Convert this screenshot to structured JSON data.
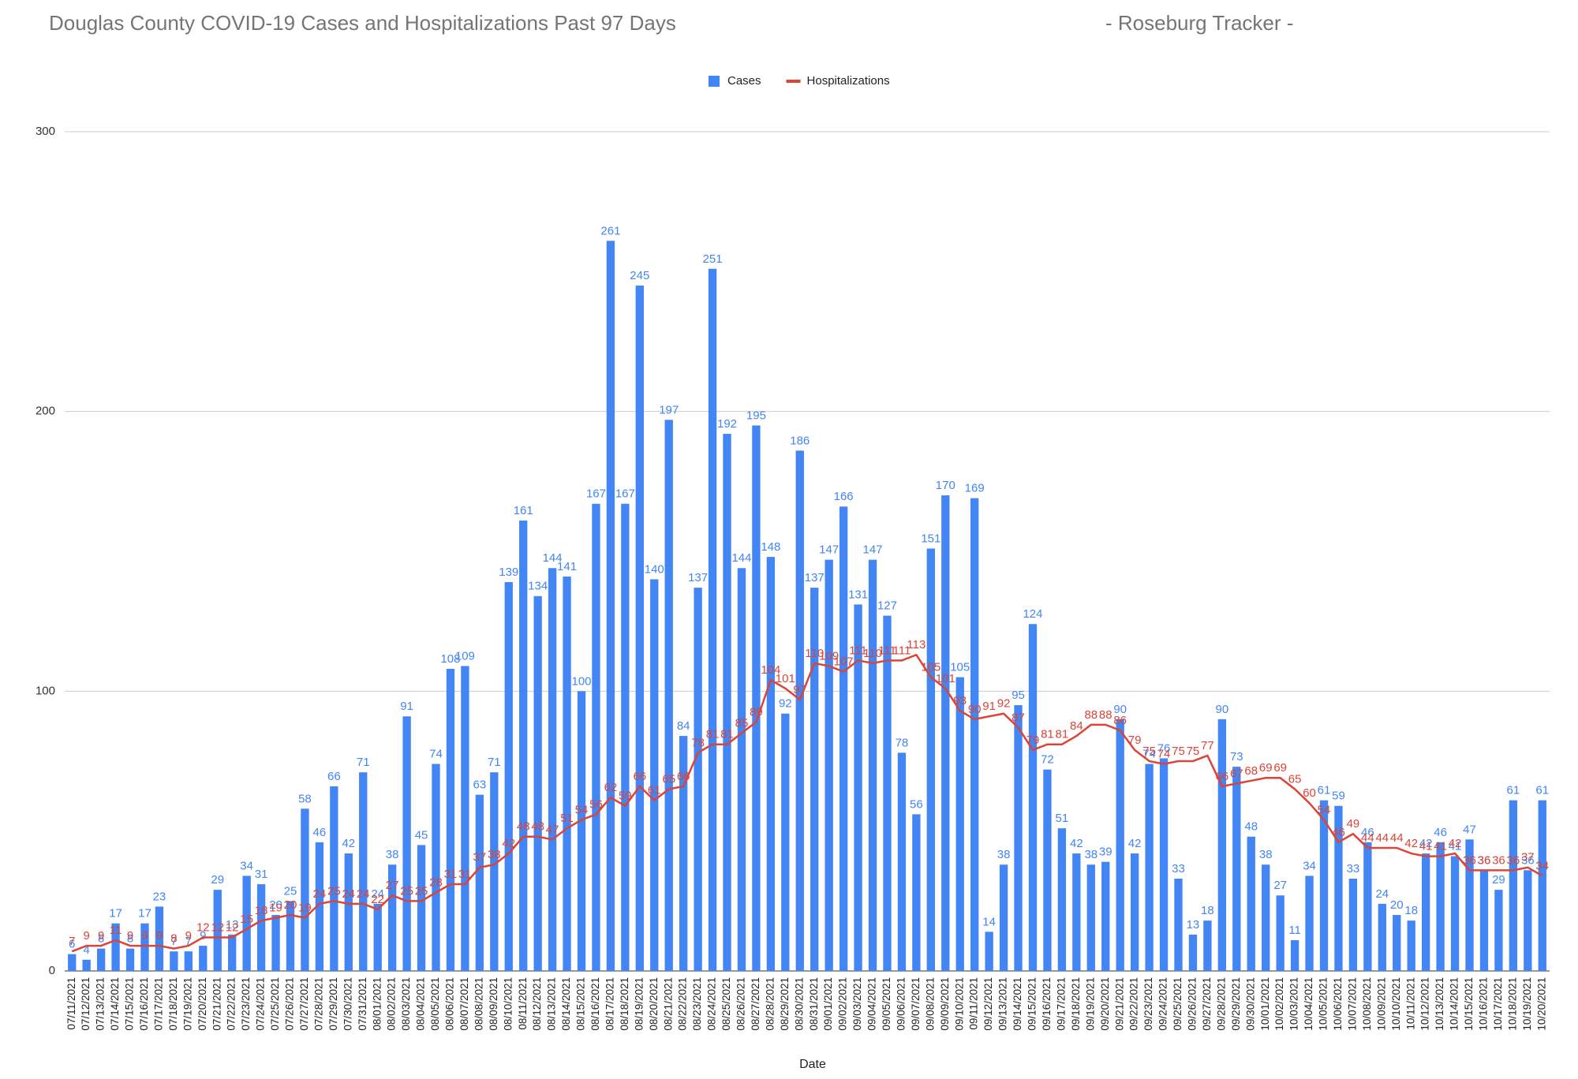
{
  "chart_data": {
    "type": "bar_line",
    "title": "Douglas County COVID-19 Cases and Hospitalizations Past 97 Days",
    "subtitle": "- Roseburg Tracker -",
    "x_label": "Date",
    "categories": [
      "07/11/2021",
      "07/12/2021",
      "07/13/2021",
      "07/14/2021",
      "07/15/2021",
      "07/16/2021",
      "07/17/2021",
      "07/18/2021",
      "07/19/2021",
      "07/20/2021",
      "07/21/2021",
      "07/22/2021",
      "07/23/2021",
      "07/24/2021",
      "07/25/2021",
      "07/26/2021",
      "07/27/2021",
      "07/28/2021",
      "07/29/2021",
      "07/30/2021",
      "07/31/2021",
      "08/01/2021",
      "08/02/2021",
      "08/03/2021",
      "08/04/2021",
      "08/05/2021",
      "08/06/2021",
      "08/07/2021",
      "08/08/2021",
      "08/09/2021",
      "08/10/2021",
      "08/11/2021",
      "08/12/2021",
      "08/13/2021",
      "08/14/2021",
      "08/15/2021",
      "08/16/2021",
      "08/17/2021",
      "08/18/2021",
      "08/19/2021",
      "08/20/2021",
      "08/21/2021",
      "08/22/2021",
      "08/23/2021",
      "08/24/2021",
      "08/25/2021",
      "08/26/2021",
      "08/27/2021",
      "08/28/2021",
      "08/29/2021",
      "08/30/2021",
      "08/31/2021",
      "09/01/2021",
      "09/02/2021",
      "09/03/2021",
      "09/04/2021",
      "09/05/2021",
      "09/06/2021",
      "09/07/2021",
      "09/08/2021",
      "09/09/2021",
      "09/10/2021",
      "09/11/2021",
      "09/12/2021",
      "09/13/2021",
      "09/14/2021",
      "09/15/2021",
      "09/16/2021",
      "09/17/2021",
      "09/18/2021",
      "09/19/2021",
      "09/20/2021",
      "09/21/2021",
      "09/22/2021",
      "09/23/2021",
      "09/24/2021",
      "09/25/2021",
      "09/26/2021",
      "09/27/2021",
      "09/28/2021",
      "09/29/2021",
      "09/30/2021",
      "10/01/2021",
      "10/02/2021",
      "10/03/2021",
      "10/04/2021",
      "10/05/2021",
      "10/06/2021",
      "10/07/2021",
      "10/08/2021",
      "10/09/2021",
      "10/10/2021",
      "10/11/2021",
      "10/12/2021",
      "10/13/2021",
      "10/14/2021",
      "10/15/2021",
      "10/16/2021",
      "10/17/2021",
      "10/18/2021",
      "10/19/2021",
      "10/20/2021"
    ],
    "series": [
      {
        "name": "Cases",
        "type": "bar",
        "color": "#4285f4",
        "values": [
          6,
          4,
          8,
          17,
          8,
          17,
          23,
          7,
          7,
          9,
          29,
          13,
          34,
          31,
          20,
          25,
          58,
          46,
          66,
          42,
          71,
          24,
          38,
          91,
          45,
          74,
          108,
          109,
          63,
          71,
          139,
          161,
          134,
          144,
          141,
          100,
          167,
          261,
          167,
          245,
          140,
          197,
          84,
          137,
          251,
          192,
          144,
          195,
          148,
          92,
          186,
          137,
          147,
          166,
          131,
          147,
          127,
          78,
          56,
          151,
          170,
          105,
          169,
          14,
          38,
          95,
          124,
          72,
          51,
          42,
          38,
          39,
          90,
          42,
          74,
          76,
          33,
          13,
          18,
          90,
          73,
          48,
          38,
          27,
          11,
          34,
          61,
          59,
          33,
          46,
          24,
          20,
          18,
          42,
          46,
          41,
          47,
          36,
          29,
          61,
          36,
          61
        ]
      },
      {
        "name": "Hospitalizations",
        "type": "line",
        "color": "#db4437",
        "values": [
          7,
          9,
          9,
          11,
          9,
          9,
          9,
          8,
          9,
          12,
          12,
          12,
          15,
          18,
          19,
          20,
          19,
          24,
          25,
          24,
          24,
          22,
          27,
          25,
          25,
          28,
          31,
          31,
          37,
          38,
          42,
          48,
          48,
          47,
          51,
          54,
          56,
          62,
          59,
          66,
          61,
          65,
          66,
          78,
          81,
          81,
          85,
          89,
          104,
          101,
          97,
          110,
          109,
          107,
          111,
          110,
          111,
          111,
          113,
          105,
          101,
          93,
          90,
          91,
          92,
          87,
          79,
          81,
          81,
          84,
          88,
          88,
          86,
          79,
          75,
          74,
          75,
          75,
          77,
          66,
          67,
          68,
          69,
          69,
          65,
          60,
          54,
          46,
          49,
          44,
          44,
          44,
          42,
          41,
          41,
          42,
          36,
          36,
          36,
          36,
          37,
          34
        ]
      }
    ],
    "ylim": [
      0,
      300
    ],
    "yticks": [
      0,
      100,
      200,
      300
    ],
    "grid": true,
    "legend": "top"
  }
}
